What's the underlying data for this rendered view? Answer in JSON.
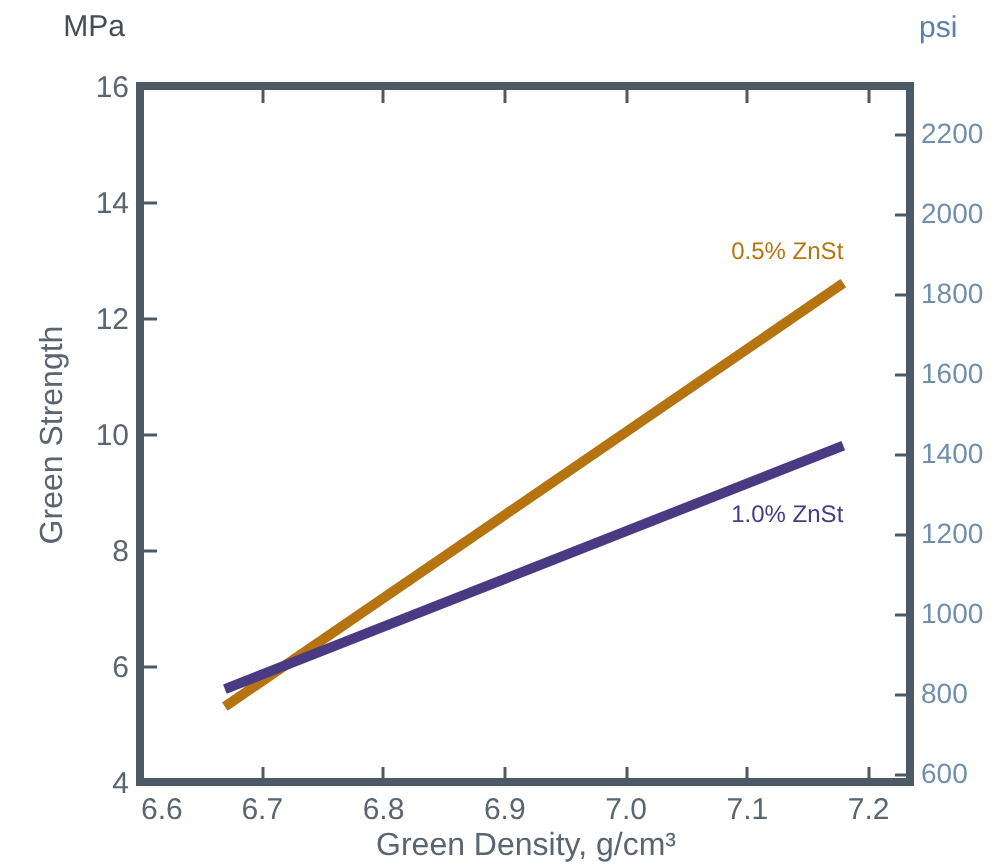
{
  "chart_data": {
    "type": "line",
    "xlabel": "Green Density, g/cm³",
    "ylabel": "Green Strength",
    "y2label": "psi",
    "annotations": [
      "MPa"
    ],
    "x": [
      6.67,
      7.18
    ],
    "series": [
      {
        "name": "0.5% ZnSt",
        "color": "#b5740f",
        "values": [
          5.3,
          12.6
        ]
      },
      {
        "name": "1.0% ZnSt",
        "color": "#4a3a84",
        "values": [
          5.6,
          9.8
        ]
      }
    ],
    "xlim": [
      6.6,
      7.235
    ],
    "xticks": [
      {
        "value": 6.6,
        "label": "6.6"
      },
      6.7,
      6.8,
      6.9,
      {
        "value": 7.0,
        "label": "7.0"
      },
      7.1,
      7.2
    ],
    "ylim": [
      4,
      16
    ],
    "yticks": [
      4,
      6,
      8,
      10,
      12,
      14,
      16
    ],
    "y2lim": [
      580,
      2321
    ],
    "y2ticks": [
      600,
      800,
      1000,
      1200,
      1400,
      1600,
      1800,
      2000,
      2200
    ],
    "grid": false,
    "marker": "none",
    "line_style": "solid"
  }
}
